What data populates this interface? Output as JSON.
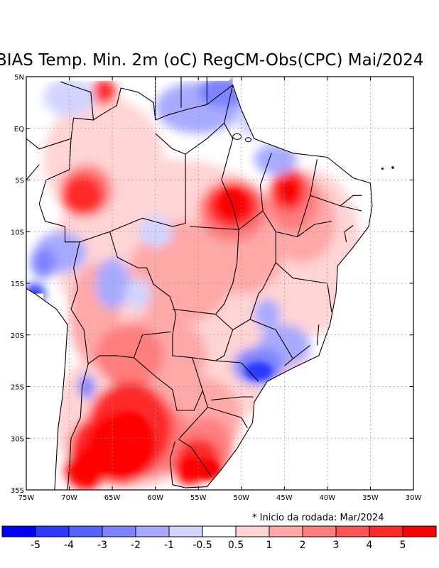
{
  "title": "BIAS Temp. Min. 2m (oC) RegCM-Obs(CPC) Mai/2024",
  "note": "* Inicio da rodada: Mar/2024",
  "axes": {
    "x_ticks": [
      "75W",
      "70W",
      "65W",
      "60W",
      "55W",
      "50W",
      "45W",
      "40W",
      "35W",
      "30W"
    ],
    "y_ticks": [
      "5N",
      "EQ",
      "5S",
      "10S",
      "15S",
      "20S",
      "25S",
      "30S",
      "35S"
    ],
    "lon_range": [
      -75,
      -30
    ],
    "lat_range": [
      -35,
      5
    ]
  },
  "colorbar": {
    "labels": [
      "-5",
      "-4",
      "-3",
      "-2",
      "-1",
      "-0.5",
      "0.5",
      "1",
      "2",
      "3",
      "4",
      "5"
    ],
    "colors": [
      "#0000ff",
      "#2a3bff",
      "#5563ff",
      "#7e84ff",
      "#a8aaff",
      "#d2d4ff",
      "#ffffff",
      "#ffd4d4",
      "#ffa8a8",
      "#ff7e7e",
      "#ff5555",
      "#ff2a2a",
      "#ff0000"
    ]
  },
  "palette": {
    "ocean": "#ffffff",
    "land_neutral": "#ffffff",
    "warm_light": "#ffd4d4",
    "warm_mid": "#ffa8a8",
    "warm": "#ff7e7e",
    "warm_strong": "#ff2a2a",
    "warm_max": "#ff0000",
    "cold_light": "#d2d4ff",
    "cold_mid": "#a8aaff",
    "cold": "#7e84ff",
    "cold_strong": "#2a3bff",
    "cold_max": "#0000ff"
  }
}
